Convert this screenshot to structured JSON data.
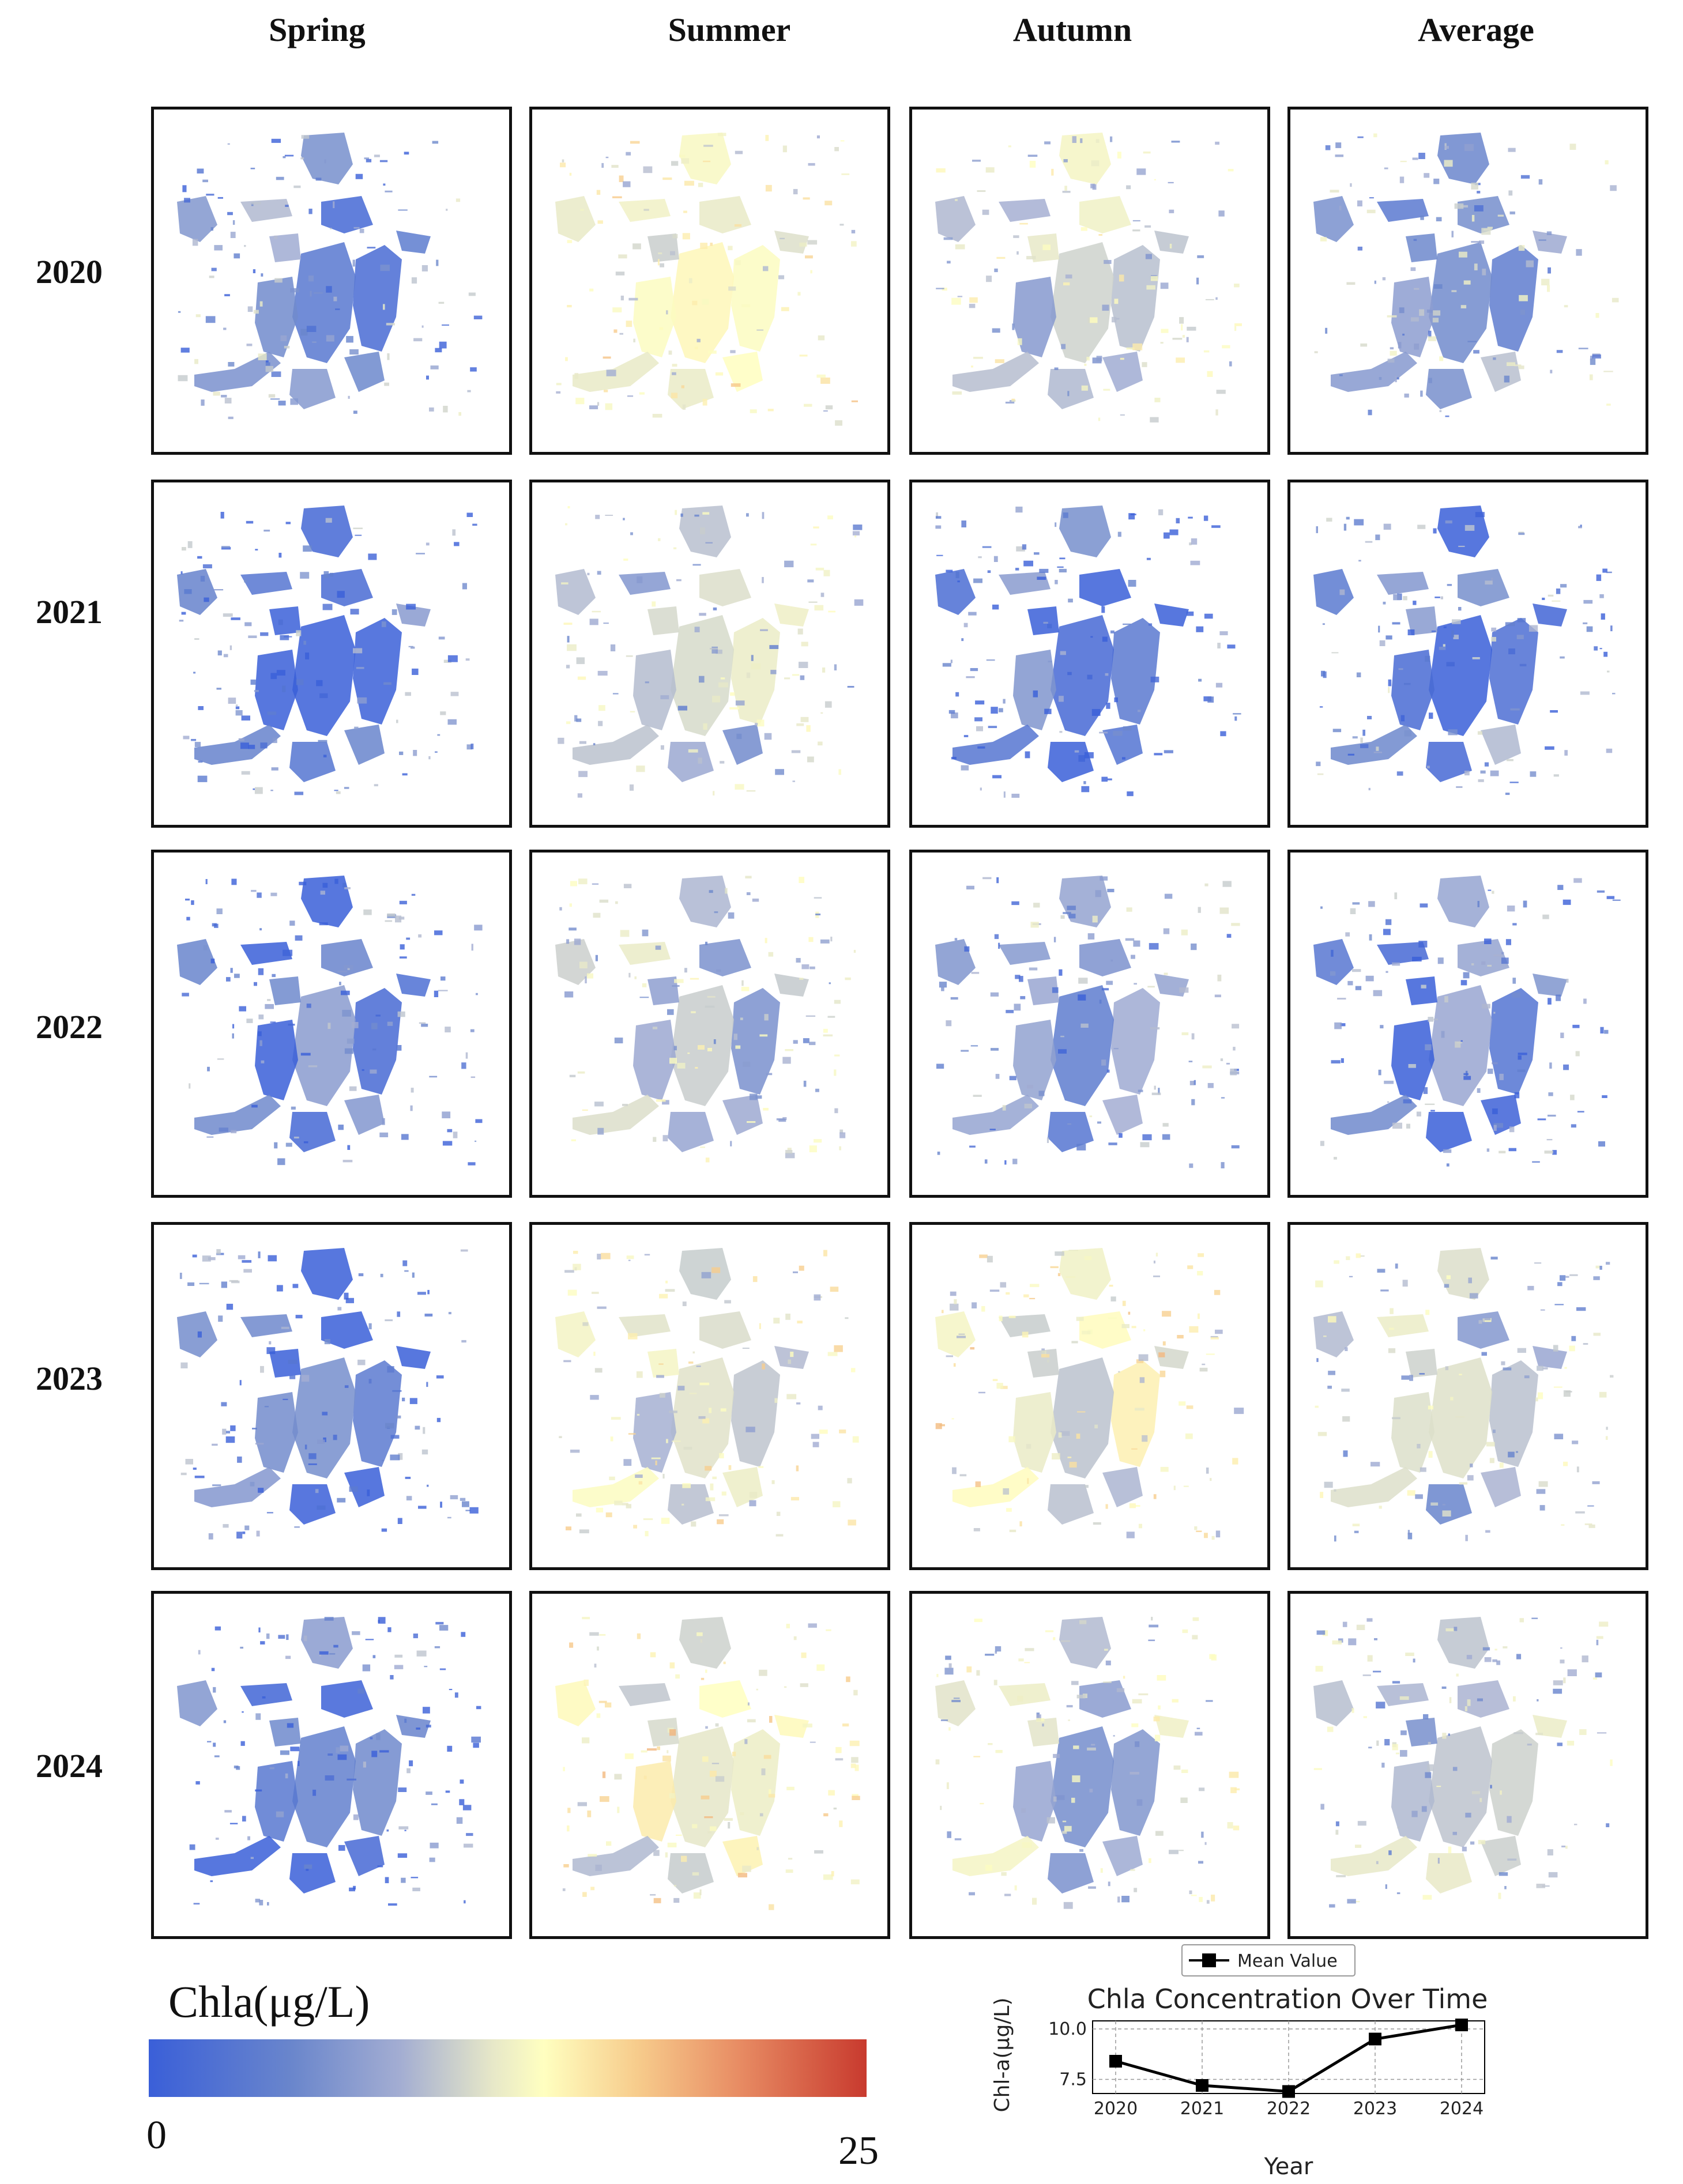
{
  "seasons": [
    "Spring",
    "Summer",
    "Autumn",
    "Average"
  ],
  "years": [
    "2020",
    "2021",
    "2022",
    "2023",
    "2024"
  ],
  "colorbar": {
    "title": "Chla(μg/L)",
    "min": "0",
    "max": "25",
    "colors": [
      "#3a5fd8",
      "#6a86cc",
      "#a3add2",
      "#e7e8c8",
      "#ffffc0",
      "#f7cc8c",
      "#e88d64",
      "#c83a2e"
    ]
  },
  "map_intensity": [
    [
      0.18,
      0.45,
      0.35,
      0.25
    ],
    [
      0.08,
      0.3,
      0.06,
      0.14
    ],
    [
      0.06,
      0.32,
      0.18,
      0.1
    ],
    [
      0.06,
      0.42,
      0.46,
      0.3
    ],
    [
      0.06,
      0.48,
      0.34,
      0.28
    ]
  ],
  "chart_data": {
    "type": "line",
    "title": "Chla Concentration Over Time",
    "xlabel": "Year",
    "ylabel": "Chl-a(μg/L)",
    "x": [
      "2020",
      "2021",
      "2022",
      "2023",
      "2024"
    ],
    "x_ticks": [
      "2020",
      "2021",
      "2022",
      "2023",
      "2024"
    ],
    "y_ticks": [
      "7.5",
      "10.0"
    ],
    "ylim": [
      6.8,
      10.4
    ],
    "grid": true,
    "legend_position": "top",
    "series": [
      {
        "name": "Mean Value",
        "values": [
          8.4,
          7.2,
          6.9,
          9.5,
          10.2
        ],
        "color": "#000000"
      }
    ]
  }
}
